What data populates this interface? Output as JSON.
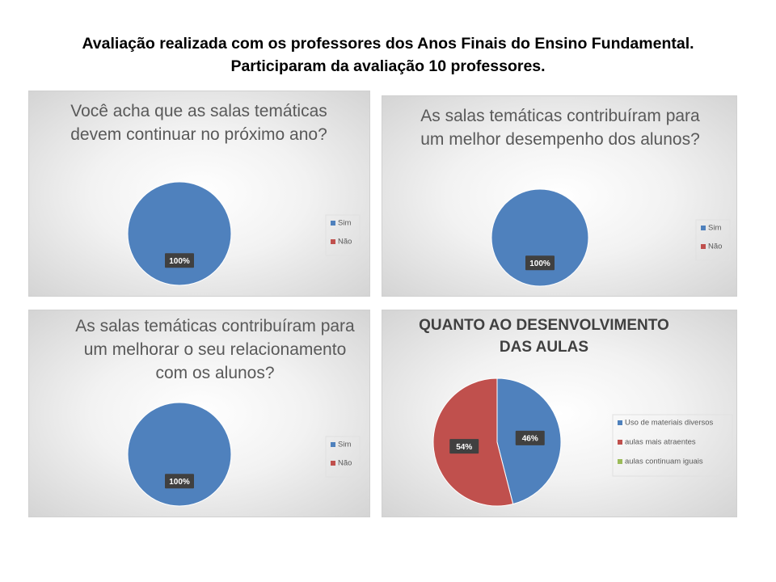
{
  "title": "Avaliação realizada com os professores dos Anos Finais do Ensino Fundamental. Participaram da avaliação 10 professores.",
  "chart_data": [
    {
      "type": "pie",
      "title": "Você acha que as salas temáticas devem continuar no próximo ano?",
      "categories": [
        "Sim",
        "Não"
      ],
      "values": [
        100,
        0
      ],
      "value_labels": [
        "100%",
        null
      ],
      "colors": [
        "#4f81bd",
        "#c0504d"
      ],
      "legend": "right"
    },
    {
      "type": "pie",
      "title": "As salas temáticas contribuíram para um melhor desempenho dos alunos?",
      "categories": [
        "Sim",
        "Não"
      ],
      "values": [
        100,
        0
      ],
      "value_labels": [
        "100%",
        null
      ],
      "colors": [
        "#4f81bd",
        "#c0504d"
      ],
      "legend": "right"
    },
    {
      "type": "pie",
      "title": "As salas temáticas contribuíram para um melhorar o seu relacionamento com os alunos?",
      "categories": [
        "Sim",
        "Não"
      ],
      "values": [
        100,
        0
      ],
      "value_labels": [
        "100%",
        null
      ],
      "colors": [
        "#4f81bd",
        "#c0504d"
      ],
      "legend": "right"
    },
    {
      "type": "pie",
      "title": "QUANTO AO DESENVOLVIMENTO DAS AULAS",
      "categories": [
        "Uso de materiais diversos",
        "aulas mais atraentes",
        "aulas continuam iguais"
      ],
      "values": [
        46,
        54,
        0
      ],
      "value_labels": [
        "46%",
        "54%",
        null
      ],
      "colors": [
        "#4f81bd",
        "#c0504d",
        "#9bbb59"
      ],
      "legend": "right"
    }
  ]
}
